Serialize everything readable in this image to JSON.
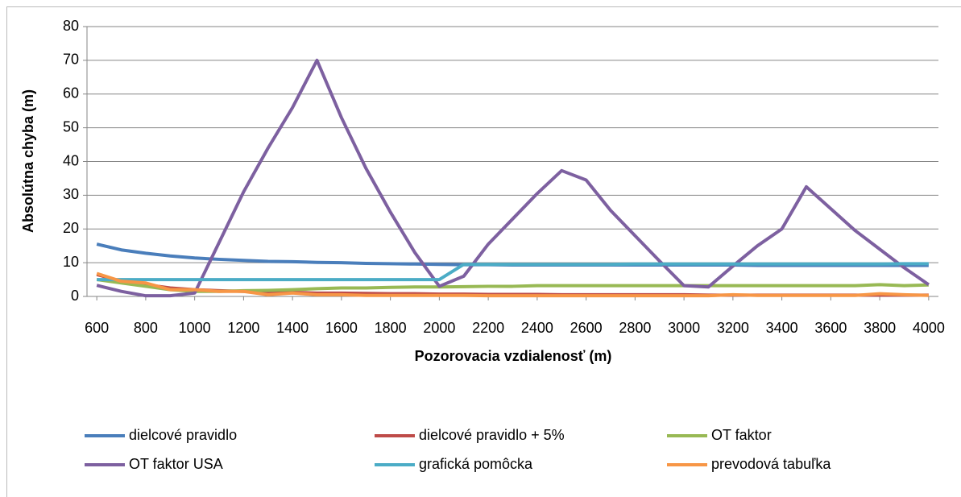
{
  "chart_data": {
    "type": "line",
    "xlabel": "Pozorovacia vzdialenosť (m)",
    "ylabel": "Absolútna chyba (m)",
    "x": [
      600,
      700,
      800,
      900,
      1000,
      1100,
      1200,
      1300,
      1400,
      1500,
      1600,
      1700,
      1800,
      1900,
      2000,
      2100,
      2200,
      2300,
      2400,
      2500,
      2600,
      2700,
      2800,
      2900,
      3000,
      3100,
      3200,
      3300,
      3400,
      3500,
      3600,
      3700,
      3800,
      3900,
      4000
    ],
    "xlim": [
      560,
      4040
    ],
    "xticks": [
      600,
      800,
      1000,
      1200,
      1400,
      1600,
      1800,
      2000,
      2200,
      2400,
      2600,
      2800,
      3000,
      3200,
      3400,
      3600,
      3800,
      4000
    ],
    "ylim": [
      0,
      80
    ],
    "yticks": [
      0,
      10,
      20,
      30,
      40,
      50,
      60,
      70,
      80
    ],
    "grid": true,
    "legend": "bottom",
    "series": [
      {
        "name": "dielcové pravidlo",
        "color": "#4a7ebb",
        "values": [
          15.5,
          13.8,
          12.8,
          12,
          11.4,
          11,
          10.7,
          10.4,
          10.3,
          10.1,
          10,
          9.8,
          9.7,
          9.6,
          9.5,
          9.4,
          9.4,
          9.3,
          9.3,
          9.3,
          9.3,
          9.3,
          9.3,
          9.3,
          9.3,
          9.3,
          9.3,
          9.2,
          9.2,
          9.2,
          9.2,
          9.2,
          9.2,
          9.2,
          9.2
        ]
      },
      {
        "name": "dielcové pravidlo + 5%",
        "color": "#be4b48",
        "values": [
          6.5,
          4.5,
          3.5,
          2.5,
          2,
          1.7,
          1.5,
          1.3,
          1.2,
          1,
          1,
          0.9,
          0.8,
          0.8,
          0.7,
          0.7,
          0.6,
          0.6,
          0.6,
          0.5,
          0.5,
          0.5,
          0.5,
          0.5,
          0.5,
          0.4,
          0.4,
          0.4,
          0.4,
          0.4,
          0.4,
          0.4,
          0.4,
          0.4,
          0.4
        ]
      },
      {
        "name": "OT faktor",
        "color": "#98b954",
        "values": [
          5,
          4,
          3,
          2,
          1.5,
          1.5,
          1.7,
          1.8,
          2,
          2.3,
          2.5,
          2.5,
          2.7,
          2.8,
          2.8,
          2.9,
          3,
          3,
          3.2,
          3.2,
          3.2,
          3.2,
          3.2,
          3.2,
          3.2,
          3.2,
          3.2,
          3.2,
          3.2,
          3.2,
          3.2,
          3.2,
          3.5,
          3.2,
          3.4
        ]
      },
      {
        "name": "OT faktor USA",
        "color": "#7d60a0",
        "values": [
          3.3,
          1.5,
          0.2,
          0.2,
          1,
          16,
          31,
          44,
          56,
          70,
          53,
          38,
          25,
          13,
          3,
          6,
          15.5,
          23,
          30.5,
          37.3,
          34.5,
          25.5,
          18,
          10.5,
          3.2,
          2.8,
          9,
          15,
          20,
          32.5,
          26,
          19.5,
          14,
          8.5,
          3.5
        ]
      },
      {
        "name": "grafická pomôcka",
        "color": "#4bacc6",
        "values": [
          5,
          5,
          5,
          5,
          5,
          5,
          5,
          5,
          5,
          5,
          5,
          5,
          5,
          5,
          5,
          9.5,
          9.5,
          9.5,
          9.5,
          9.5,
          9.5,
          9.5,
          9.6,
          9.6,
          9.6,
          9.6,
          9.6,
          9.6,
          9.6,
          9.6,
          9.6,
          9.6,
          9.6,
          9.7,
          9.7
        ]
      },
      {
        "name": "prevodová tabuľka",
        "color": "#f79646",
        "values": [
          6.8,
          4.5,
          4,
          2,
          2,
          1.5,
          1.5,
          0.5,
          1,
          0.5,
          0.5,
          0.3,
          0.3,
          0.3,
          0.3,
          0.3,
          0.2,
          0.2,
          0.2,
          0.2,
          0.2,
          0.2,
          0.2,
          0.2,
          0.2,
          0.2,
          0.5,
          0.3,
          0.3,
          0.3,
          0.3,
          0.3,
          0.8,
          0.5,
          0.3
        ]
      }
    ]
  }
}
